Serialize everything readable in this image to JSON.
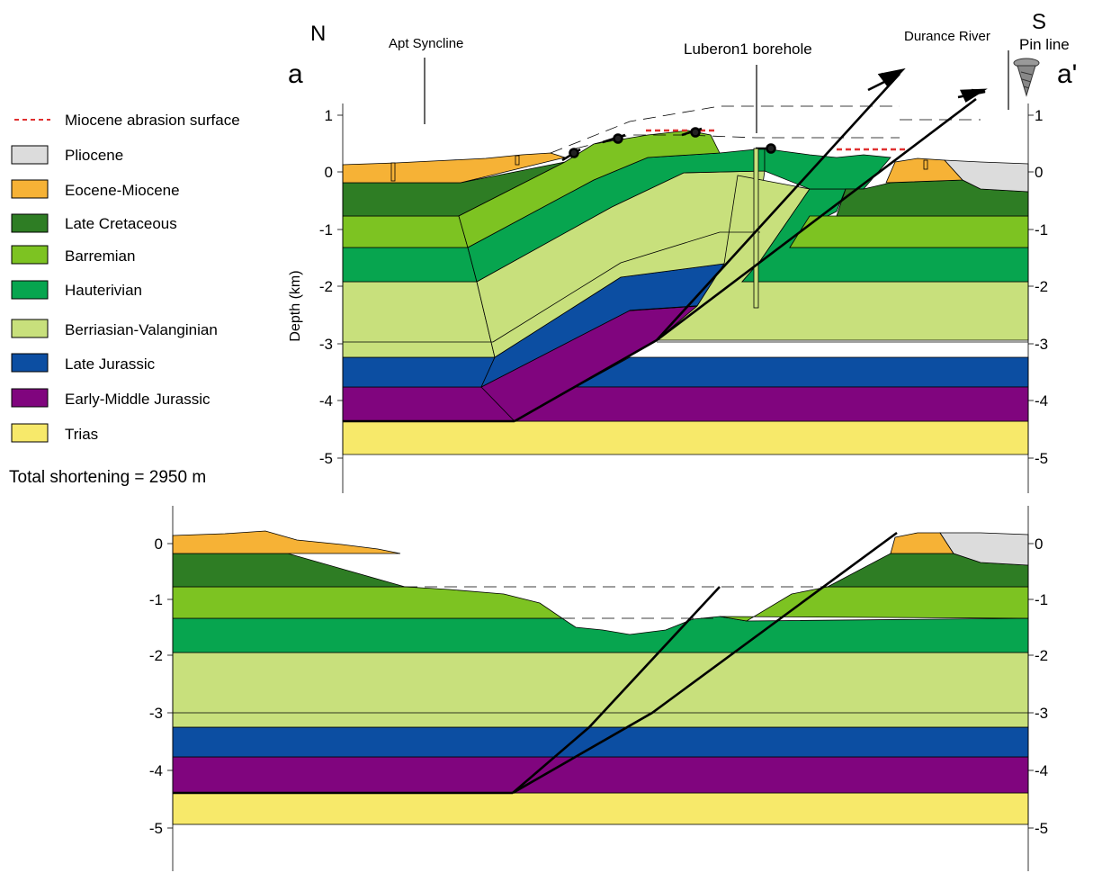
{
  "header": {
    "north": "N",
    "south": "S",
    "section_start": "a",
    "section_end": "a'",
    "apt_syncline": "Apt Syncline",
    "borehole": "Luberon1 borehole",
    "river": "Durance River",
    "pin_line": "Pin line"
  },
  "legend": {
    "abrasion": "Miocene abrasion surface",
    "items": [
      {
        "label": "Pliocene",
        "color": "#dcdcdc"
      },
      {
        "label": "Eocene-Miocene",
        "color": "#f6b236"
      },
      {
        "label": "Late Cretaceous",
        "color": "#2e7d24"
      },
      {
        "label": "Barremian",
        "color": "#7dc322"
      },
      {
        "label": "Hauterivian",
        "color": "#07a54f"
      },
      {
        "label": "Berriasian-Valanginian",
        "color": "#c8e07c"
      },
      {
        "label": "Late Jurassic",
        "color": "#0c4ea2"
      },
      {
        "label": "Early-Middle Jurassic",
        "color": "#80057e"
      },
      {
        "label": "Trias",
        "color": "#f7e96a"
      }
    ],
    "abrasion_color": "#e03030"
  },
  "shortening": "Total shortening = 2950 m",
  "axis": {
    "ylabel": "Depth (km)",
    "top_ticks": [
      "1",
      "0",
      "-1",
      "-2",
      "-3",
      "-4",
      "-5"
    ],
    "bottom_ticks": [
      "0",
      "-1",
      "-2",
      "-3",
      "-4",
      "-5"
    ]
  }
}
